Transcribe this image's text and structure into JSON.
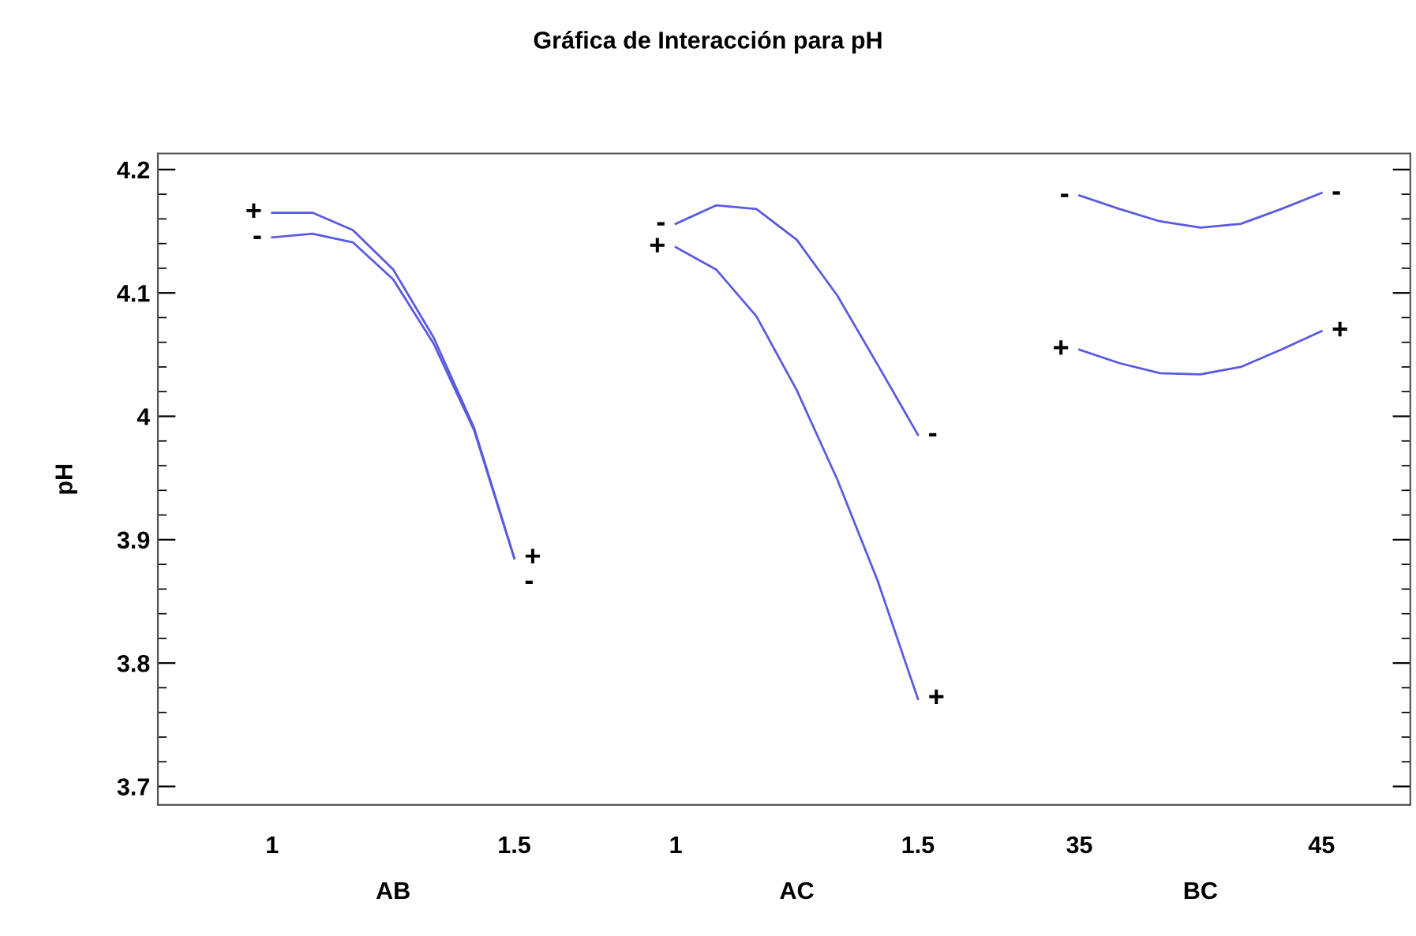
{
  "chart_data": {
    "type": "line",
    "title": "Gráfica de Interacción para pH",
    "ylabel": "pH",
    "categories": [
      "1",
      null,
      null,
      null,
      null,
      null,
      "1.5",
      null,
      null,
      null,
      "1",
      null,
      null,
      null,
      null,
      null,
      "1.5",
      null,
      null,
      null,
      "35",
      null,
      null,
      null,
      null,
      null,
      "45"
    ],
    "series": [
      {
        "name": "+",
        "color": "#5a5ae0",
        "values": [
          4.165,
          4.165,
          4.151,
          4.119,
          4.064,
          3.991,
          3.885,
          null,
          null,
          null,
          null,
          null,
          null,
          null,
          null,
          null,
          null,
          null,
          null,
          null,
          null,
          null,
          null,
          null,
          null,
          null,
          null
        ]
      },
      {
        "name": "-",
        "color": "#5a5ae0",
        "values": [
          4.145,
          4.148,
          4.141,
          4.111,
          4.059,
          3.989,
          3.885,
          null,
          null,
          null,
          null,
          null,
          null,
          null,
          null,
          null,
          null,
          null,
          null,
          null,
          null,
          null,
          null,
          null,
          null,
          null,
          null
        ]
      },
      {
        "name": "-",
        "color": "#5a5ae0",
        "values": [
          null,
          null,
          null,
          null,
          null,
          null,
          null,
          null,
          null,
          null,
          4.156,
          4.171,
          4.168,
          4.143,
          4.098,
          4.042,
          3.985,
          null,
          null,
          null,
          null,
          null,
          null,
          null,
          null,
          null,
          null
        ]
      },
      {
        "name": "+",
        "color": "#5a5ae0",
        "values": [
          null,
          null,
          null,
          null,
          null,
          null,
          null,
          null,
          null,
          null,
          4.137,
          4.119,
          4.081,
          4.021,
          3.949,
          3.867,
          3.771,
          null,
          null,
          null,
          null,
          null,
          null,
          null,
          null,
          null,
          null
        ]
      },
      {
        "name": "-",
        "color": "#5a5ae0",
        "values": [
          null,
          null,
          null,
          null,
          null,
          null,
          null,
          null,
          null,
          null,
          null,
          null,
          null,
          null,
          null,
          null,
          null,
          null,
          null,
          null,
          4.179,
          4.168,
          4.158,
          4.153,
          4.156,
          4.168,
          4.181
        ]
      },
      {
        "name": "+",
        "color": "#5a5ae0",
        "values": [
          null,
          null,
          null,
          null,
          null,
          null,
          null,
          null,
          null,
          null,
          null,
          null,
          null,
          null,
          null,
          null,
          null,
          null,
          null,
          null,
          4.054,
          4.043,
          4.035,
          4.034,
          4.04,
          4.054,
          4.069
        ]
      }
    ],
    "annotations": [
      "AB",
      "AC",
      "BC"
    ],
    "ylim": [
      3.685,
      4.213
    ],
    "yticks": [
      3.7,
      3.8,
      3.9,
      4,
      4.1,
      4.2
    ],
    "grid": false,
    "legend": false,
    "marker": "none",
    "line_style": "solid"
  }
}
